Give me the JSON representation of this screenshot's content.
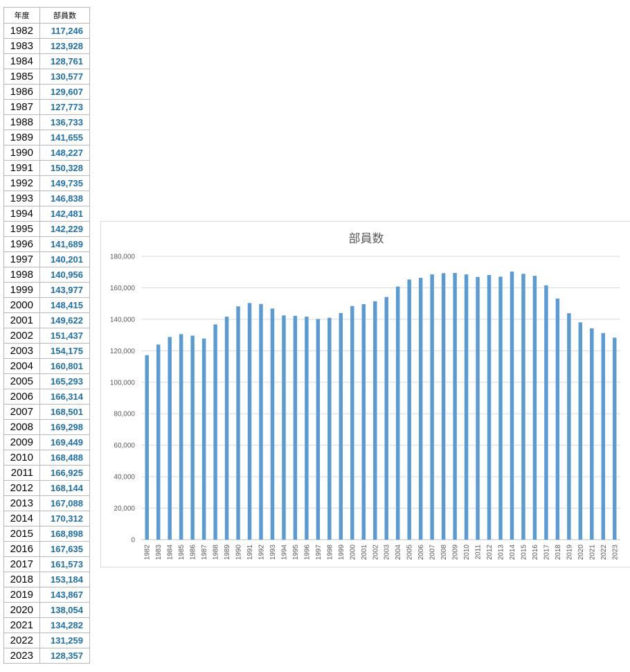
{
  "table": {
    "headers": {
      "year": "年度",
      "value": "部員数"
    },
    "rows": [
      {
        "year": "1982",
        "value": "117,246"
      },
      {
        "year": "1983",
        "value": "123,928"
      },
      {
        "year": "1984",
        "value": "128,761"
      },
      {
        "year": "1985",
        "value": "130,577"
      },
      {
        "year": "1986",
        "value": "129,607"
      },
      {
        "year": "1987",
        "value": "127,773"
      },
      {
        "year": "1988",
        "value": "136,733"
      },
      {
        "year": "1989",
        "value": "141,655"
      },
      {
        "year": "1990",
        "value": "148,227"
      },
      {
        "year": "1991",
        "value": "150,328"
      },
      {
        "year": "1992",
        "value": "149,735"
      },
      {
        "year": "1993",
        "value": "146,838"
      },
      {
        "year": "1994",
        "value": "142,481"
      },
      {
        "year": "1995",
        "value": "142,229"
      },
      {
        "year": "1996",
        "value": "141,689"
      },
      {
        "year": "1997",
        "value": "140,201"
      },
      {
        "year": "1998",
        "value": "140,956"
      },
      {
        "year": "1999",
        "value": "143,977"
      },
      {
        "year": "2000",
        "value": "148,415"
      },
      {
        "year": "2001",
        "value": "149,622"
      },
      {
        "year": "2002",
        "value": "151,437"
      },
      {
        "year": "2003",
        "value": "154,175"
      },
      {
        "year": "2004",
        "value": "160,801"
      },
      {
        "year": "2005",
        "value": "165,293"
      },
      {
        "year": "2006",
        "value": "166,314"
      },
      {
        "year": "2007",
        "value": "168,501"
      },
      {
        "year": "2008",
        "value": "169,298"
      },
      {
        "year": "2009",
        "value": "169,449"
      },
      {
        "year": "2010",
        "value": "168,488"
      },
      {
        "year": "2011",
        "value": "166,925"
      },
      {
        "year": "2012",
        "value": "168,144"
      },
      {
        "year": "2013",
        "value": "167,088"
      },
      {
        "year": "2014",
        "value": "170,312"
      },
      {
        "year": "2015",
        "value": "168,898"
      },
      {
        "year": "2016",
        "value": "167,635"
      },
      {
        "year": "2017",
        "value": "161,573"
      },
      {
        "year": "2018",
        "value": "153,184"
      },
      {
        "year": "2019",
        "value": "143,867"
      },
      {
        "year": "2020",
        "value": "138,054"
      },
      {
        "year": "2021",
        "value": "134,282"
      },
      {
        "year": "2022",
        "value": "131,259"
      },
      {
        "year": "2023",
        "value": "128,357"
      }
    ]
  },
  "colors": {
    "bar": "#5b9bd5",
    "table_value": "#1f6fa8"
  },
  "chart_data": {
    "type": "bar",
    "title": "部員数",
    "xlabel": "",
    "ylabel": "",
    "ylim": [
      0,
      180000
    ],
    "yticks": [
      0,
      20000,
      40000,
      60000,
      80000,
      100000,
      120000,
      140000,
      160000,
      180000
    ],
    "ytick_labels": [
      "0",
      "20,000",
      "40,000",
      "60,000",
      "80,000",
      "100,000",
      "120,000",
      "140,000",
      "160,000",
      "180,000"
    ],
    "grid": true,
    "legend": "none",
    "categories": [
      "1982",
      "1983",
      "1984",
      "1985",
      "1986",
      "1987",
      "1988",
      "1989",
      "1990",
      "1991",
      "1992",
      "1993",
      "1994",
      "1995",
      "1996",
      "1997",
      "1998",
      "1999",
      "2000",
      "2001",
      "2002",
      "2003",
      "2004",
      "2005",
      "2006",
      "2007",
      "2008",
      "2009",
      "2010",
      "2011",
      "2012",
      "2013",
      "2014",
      "2015",
      "2016",
      "2017",
      "2018",
      "2019",
      "2020",
      "2021",
      "2022",
      "2023"
    ],
    "values": [
      117246,
      123928,
      128761,
      130577,
      129607,
      127773,
      136733,
      141655,
      148227,
      150328,
      149735,
      146838,
      142481,
      142229,
      141689,
      140201,
      140956,
      143977,
      148415,
      149622,
      151437,
      154175,
      160801,
      165293,
      166314,
      168501,
      169298,
      169449,
      168488,
      166925,
      168144,
      167088,
      170312,
      168898,
      167635,
      161573,
      153184,
      143867,
      138054,
      134282,
      131259,
      128357
    ]
  }
}
